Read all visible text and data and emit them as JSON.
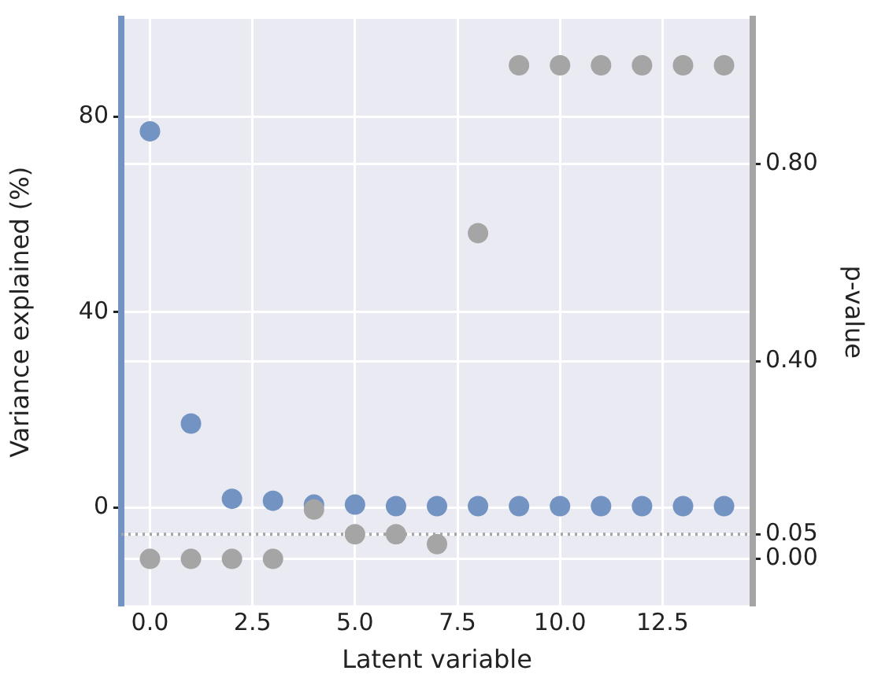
{
  "chart_data": {
    "type": "scatter",
    "xlabel": "Latent variable",
    "ylabel": "Variance explained (%)",
    "y2label": "p-value",
    "x": [
      0,
      1,
      2,
      3,
      4,
      5,
      6,
      7,
      8,
      9,
      10,
      11,
      12,
      13,
      14
    ],
    "series": [
      {
        "color": "#7393c3",
        "values": [
          77,
          17.2,
          1.8,
          1.4,
          0.6,
          0.6,
          0.3,
          0.3,
          0.3,
          0.3,
          0.3,
          0.3,
          0.3,
          0.3,
          0.3
        ]
      },
      {
        "color": "#a5a5a5",
        "axis": "y2",
        "values": [
          0.0,
          0.0,
          0.0,
          0.0,
          0.1,
          0.05,
          0.05,
          0.03,
          0.66,
          1.0,
          1.0,
          1.0,
          1.0,
          1.0,
          1.0
        ]
      }
    ],
    "xlim": [
      -0.7,
      14.7
    ],
    "xticks": [
      {
        "value": 0,
        "label": "0.0"
      },
      2.5,
      {
        "value": 5,
        "label": "5.0"
      },
      7.5,
      {
        "value": 10,
        "label": "10.0"
      },
      12.5
    ],
    "ylim": [
      -20,
      100
    ],
    "yticks": [
      0,
      40,
      80
    ],
    "y2lim": [
      -0.094,
      1.094
    ],
    "y2ticks": [
      {
        "value": 0,
        "label": "0.00"
      },
      0.05,
      {
        "value": 0.4,
        "label": "0.40"
      },
      {
        "value": 0.8,
        "label": "0.80"
      }
    ],
    "ref_lines": [
      {
        "axis": "y2",
        "value": 0.05,
        "color": "#a5a5a5",
        "line_style": "dotted"
      }
    ],
    "grid": true,
    "marker": "circle",
    "legend": false
  }
}
